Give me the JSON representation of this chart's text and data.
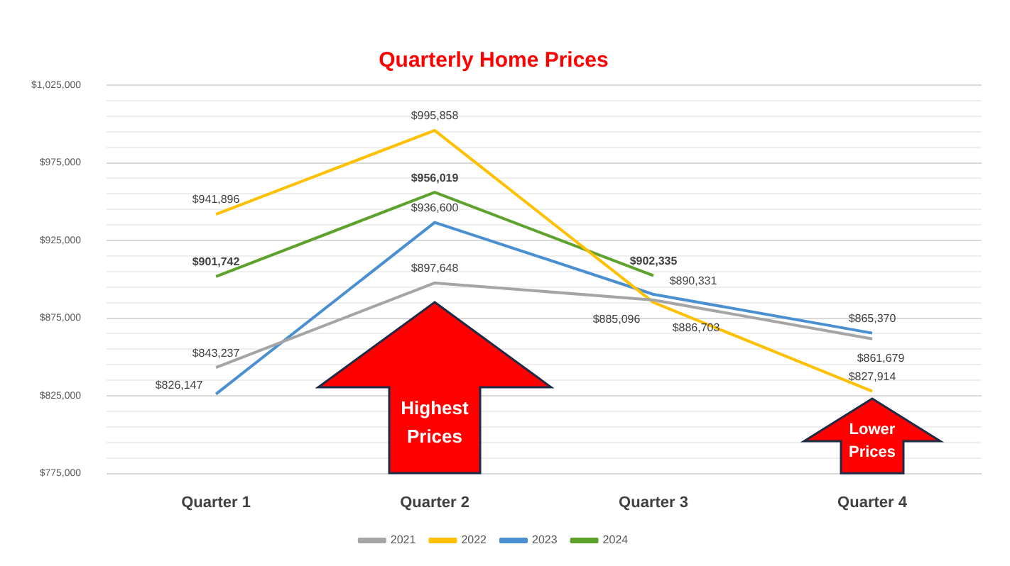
{
  "chart_data": {
    "type": "line",
    "title": "Quarterly Home Prices",
    "categories": [
      "Quarter 1",
      "Quarter 2",
      "Quarter 3",
      "Quarter 4"
    ],
    "series": [
      {
        "name": "2021",
        "color": "#a5a5a5",
        "values": [
          843237,
          897648,
          886703,
          861679
        ],
        "value_labels": [
          "$843,237",
          "$897,648",
          "$886,703",
          "$861,679"
        ]
      },
      {
        "name": "2022",
        "color": "#ffc000",
        "values": [
          941896,
          995858,
          885096,
          827914
        ],
        "value_labels": [
          "$941,896",
          "$995,858",
          "$885,096",
          "$827,914"
        ]
      },
      {
        "name": "2023",
        "color": "#4a90d0",
        "values": [
          826147,
          936600,
          890331,
          865370
        ],
        "value_labels": [
          "$826,147",
          "$936,600",
          "$890,331",
          "$865,370"
        ]
      },
      {
        "name": "2024",
        "color": "#5ea22e",
        "values": [
          901742,
          956019,
          902335,
          null
        ],
        "value_labels": [
          "$901,742",
          "$956,019",
          "$902,335",
          null
        ]
      }
    ],
    "ylim": [
      775000,
      1025000
    ],
    "yticks": [
      {
        "value": 775000,
        "label": "$775,000"
      },
      {
        "value": 785000,
        "label": null
      },
      {
        "value": 795000,
        "label": null
      },
      {
        "value": 805000,
        "label": null
      },
      {
        "value": 815000,
        "label": null
      },
      {
        "value": 825000,
        "label": "$825,000"
      },
      {
        "value": 835000,
        "label": null
      },
      {
        "value": 845000,
        "label": null
      },
      {
        "value": 855000,
        "label": null
      },
      {
        "value": 865000,
        "label": null
      },
      {
        "value": 875000,
        "label": "$875,000"
      },
      {
        "value": 885000,
        "label": null
      },
      {
        "value": 895000,
        "label": null
      },
      {
        "value": 905000,
        "label": null
      },
      {
        "value": 915000,
        "label": null
      },
      {
        "value": 925000,
        "label": "$925,000"
      },
      {
        "value": 935000,
        "label": null
      },
      {
        "value": 945000,
        "label": null
      },
      {
        "value": 955000,
        "label": null
      },
      {
        "value": 965000,
        "label": null
      },
      {
        "value": 975000,
        "label": "$975,000"
      },
      {
        "value": 985000,
        "label": null
      },
      {
        "value": 995000,
        "label": null
      },
      {
        "value": 1005000,
        "label": null
      },
      {
        "value": 1015000,
        "label": null
      },
      {
        "value": 1025000,
        "label": "$1,025,000"
      }
    ],
    "grid": "y",
    "legend": "bottom",
    "marker": "none",
    "line_style": "solid",
    "annotations": [
      "Highest Prices",
      "Lower Prices"
    ]
  }
}
